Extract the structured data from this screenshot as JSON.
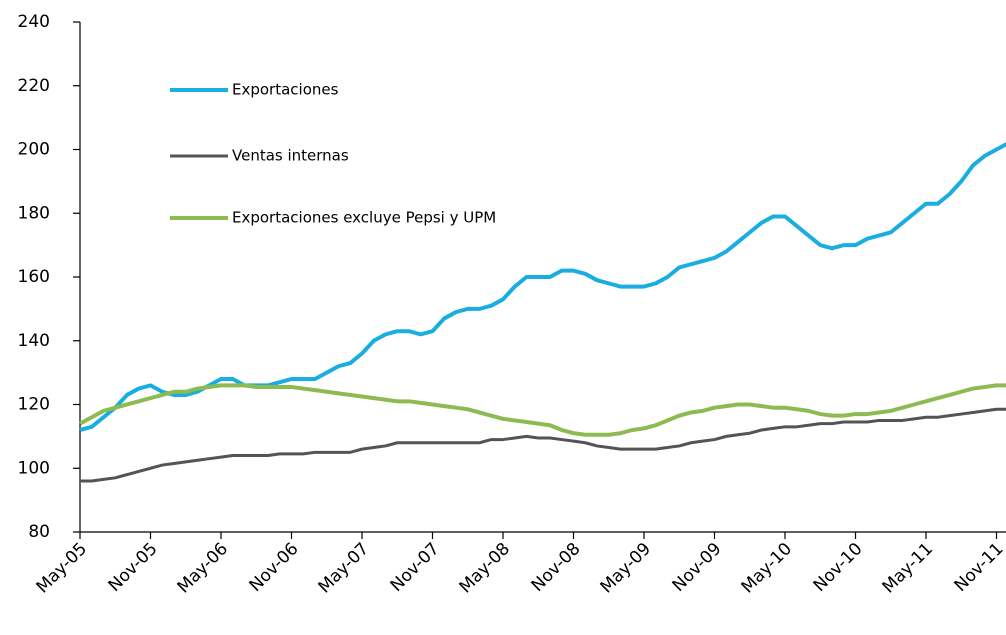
{
  "chart_data": {
    "type": "line",
    "categories": [
      "May-05",
      null,
      null,
      null,
      null,
      null,
      "Nov-05",
      null,
      null,
      null,
      null,
      null,
      "May-06",
      null,
      null,
      null,
      null,
      null,
      "Nov-06",
      null,
      null,
      null,
      null,
      null,
      "May-07",
      null,
      null,
      null,
      null,
      null,
      "Nov-07",
      null,
      null,
      null,
      null,
      null,
      "May-08",
      null,
      null,
      null,
      null,
      null,
      "Nov-08",
      null,
      null,
      null,
      null,
      null,
      "May-09",
      null,
      null,
      null,
      null,
      null,
      "Nov-09",
      null,
      null,
      null,
      null,
      null,
      "May-10",
      null,
      null,
      null,
      null,
      null,
      "Nov-10",
      null,
      null,
      null,
      null,
      null,
      "May-11",
      null,
      null,
      null,
      null,
      null,
      "Nov-11",
      null
    ],
    "series": [
      {
        "name": "Exportaciones",
        "color": "#1aaee0",
        "values": [
          112,
          113,
          116,
          119,
          123,
          125,
          126,
          124,
          123,
          123,
          124,
          126,
          128,
          128,
          126,
          126,
          126,
          127,
          128,
          128,
          128,
          130,
          132,
          133,
          136,
          140,
          142,
          143,
          143,
          142,
          143,
          147,
          149,
          150,
          150,
          151,
          153,
          157,
          160,
          160,
          160,
          162,
          162,
          161,
          159,
          158,
          157,
          157,
          157,
          158,
          160,
          163,
          164,
          165,
          166,
          168,
          171,
          174,
          177,
          179,
          179,
          176,
          173,
          170,
          169,
          170,
          170,
          172,
          173,
          174,
          177,
          180,
          183,
          183,
          186,
          190,
          195,
          198,
          200,
          202
        ]
      },
      {
        "name": "Ventas internas",
        "color": "#545454",
        "values": [
          96,
          96,
          96.5,
          97,
          98,
          99,
          100,
          101,
          101.5,
          102,
          102.5,
          103,
          103.5,
          104,
          104,
          104,
          104,
          104.5,
          104.5,
          104.5,
          105,
          105,
          105,
          105,
          106,
          106.5,
          107,
          108,
          108,
          108,
          108,
          108,
          108,
          108,
          108,
          109,
          109,
          109.5,
          110,
          109.5,
          109.5,
          109,
          108.5,
          108,
          107,
          106.5,
          106,
          106,
          106,
          106,
          106.5,
          107,
          108,
          108.5,
          109,
          110,
          110.5,
          111,
          112,
          112.5,
          113,
          113,
          113.5,
          114,
          114,
          114.5,
          114.5,
          114.5,
          115,
          115,
          115,
          115.5,
          116,
          116,
          116.5,
          117,
          117.5,
          118,
          118.5,
          118.5
        ]
      },
      {
        "name": "Exportaciones excluye Pepsi y UPM",
        "color": "#8cbb50",
        "values": [
          114,
          116,
          118,
          119,
          120,
          121,
          122,
          123,
          124,
          124,
          125,
          125.5,
          126,
          126,
          126,
          125.5,
          125.5,
          125.5,
          125.5,
          125,
          124.5,
          124,
          123.5,
          123,
          122.5,
          122,
          121.5,
          121,
          121,
          120.5,
          120,
          119.5,
          119,
          118.5,
          117.5,
          116.5,
          115.5,
          115,
          114.5,
          114,
          113.5,
          112,
          111,
          110.5,
          110.5,
          110.5,
          111,
          112,
          112.5,
          113.5,
          115,
          116.5,
          117.5,
          118,
          119,
          119.5,
          120,
          120,
          119.5,
          119,
          119,
          118.5,
          118,
          117,
          116.5,
          116.5,
          117,
          117,
          117.5,
          118,
          119,
          120,
          121,
          122,
          123,
          124,
          125,
          125.5,
          126,
          126
        ]
      }
    ],
    "ylim": [
      80,
      240
    ],
    "yticks": [
      80,
      100,
      120,
      140,
      160,
      180,
      200,
      220,
      240
    ],
    "grid": false
  }
}
